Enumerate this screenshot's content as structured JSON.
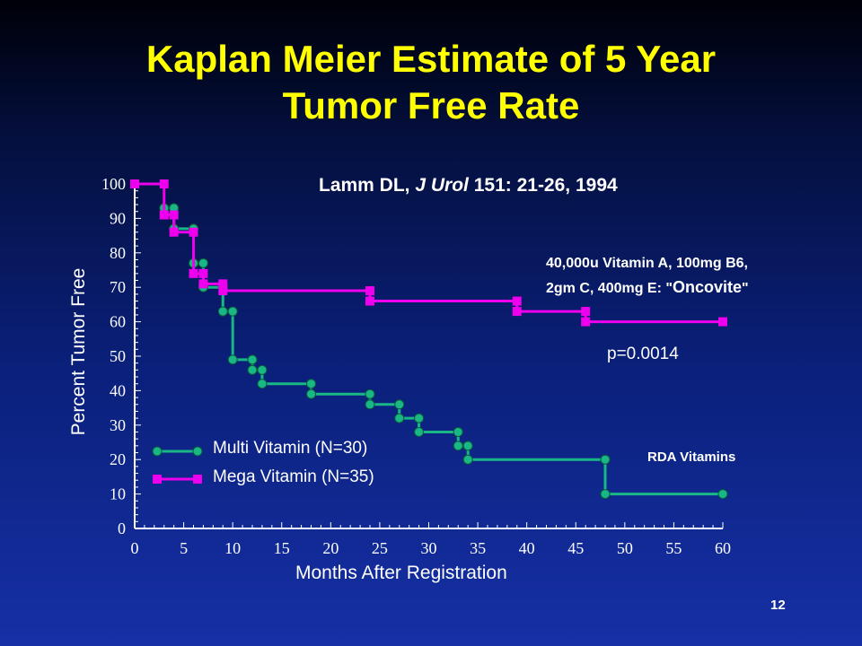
{
  "title_line1": "Kaplan Meier Estimate of 5 Year",
  "title_line2": "Tumor Free Rate",
  "citation": {
    "authors": "Lamm DL,",
    "journal": "J Urol",
    "ref": "151: 21-26, 1994"
  },
  "note": {
    "line1": "40,000u Vitamin A, 100mg B6,",
    "line2_prefix": "2gm C, 400mg E: \"",
    "brand": "Oncovite",
    "line2_suffix": "\""
  },
  "slide_number": "12",
  "colors": {
    "title": "#ffff00",
    "multi": "#19b786",
    "mega": "#ee00ee",
    "text": "#ffffff"
  },
  "chart_data": {
    "type": "line",
    "step": true,
    "xlabel": "Months After Registration",
    "ylabel": "Percent Tumor Free",
    "xlim": [
      0,
      60
    ],
    "ylim": [
      0,
      100
    ],
    "xticks": [
      0,
      5,
      10,
      15,
      20,
      25,
      30,
      35,
      40,
      45,
      50,
      55,
      60
    ],
    "yticks": [
      0,
      10,
      20,
      30,
      40,
      50,
      60,
      70,
      80,
      90,
      100
    ],
    "legend_position": "bottom-left",
    "annotations": [
      "p=0.0014",
      "RDA Vitamins"
    ],
    "series": [
      {
        "name": "Multi Vitamin  (N=30)",
        "marker": "circle",
        "color": "#19b786",
        "points": [
          [
            3,
            93
          ],
          [
            4,
            93
          ],
          [
            4,
            87
          ],
          [
            6,
            87
          ],
          [
            6,
            77
          ],
          [
            7,
            77
          ],
          [
            7,
            70
          ],
          [
            9,
            70
          ],
          [
            9,
            63
          ],
          [
            10,
            63
          ],
          [
            10,
            49
          ],
          [
            12,
            49
          ],
          [
            12,
            46
          ],
          [
            13,
            46
          ],
          [
            13,
            42
          ],
          [
            18,
            42
          ],
          [
            18,
            39
          ],
          [
            24,
            39
          ],
          [
            24,
            36
          ],
          [
            27,
            36
          ],
          [
            27,
            32
          ],
          [
            29,
            32
          ],
          [
            29,
            28
          ],
          [
            33,
            28
          ],
          [
            33,
            24
          ],
          [
            34,
            24
          ],
          [
            34,
            20
          ],
          [
            48,
            20
          ],
          [
            48,
            10
          ],
          [
            60,
            10
          ]
        ]
      },
      {
        "name": "Mega Vitamin (N=35)",
        "marker": "square",
        "color": "#ee00ee",
        "points": [
          [
            0,
            100
          ],
          [
            3,
            100
          ],
          [
            3,
            91
          ],
          [
            4,
            91
          ],
          [
            4,
            86
          ],
          [
            6,
            86
          ],
          [
            6,
            74
          ],
          [
            7,
            74
          ],
          [
            7,
            71
          ],
          [
            9,
            71
          ],
          [
            9,
            69
          ],
          [
            24,
            69
          ],
          [
            24,
            66
          ],
          [
            39,
            66
          ],
          [
            39,
            63
          ],
          [
            46,
            63
          ],
          [
            46,
            60
          ],
          [
            60,
            60
          ]
        ]
      }
    ]
  }
}
